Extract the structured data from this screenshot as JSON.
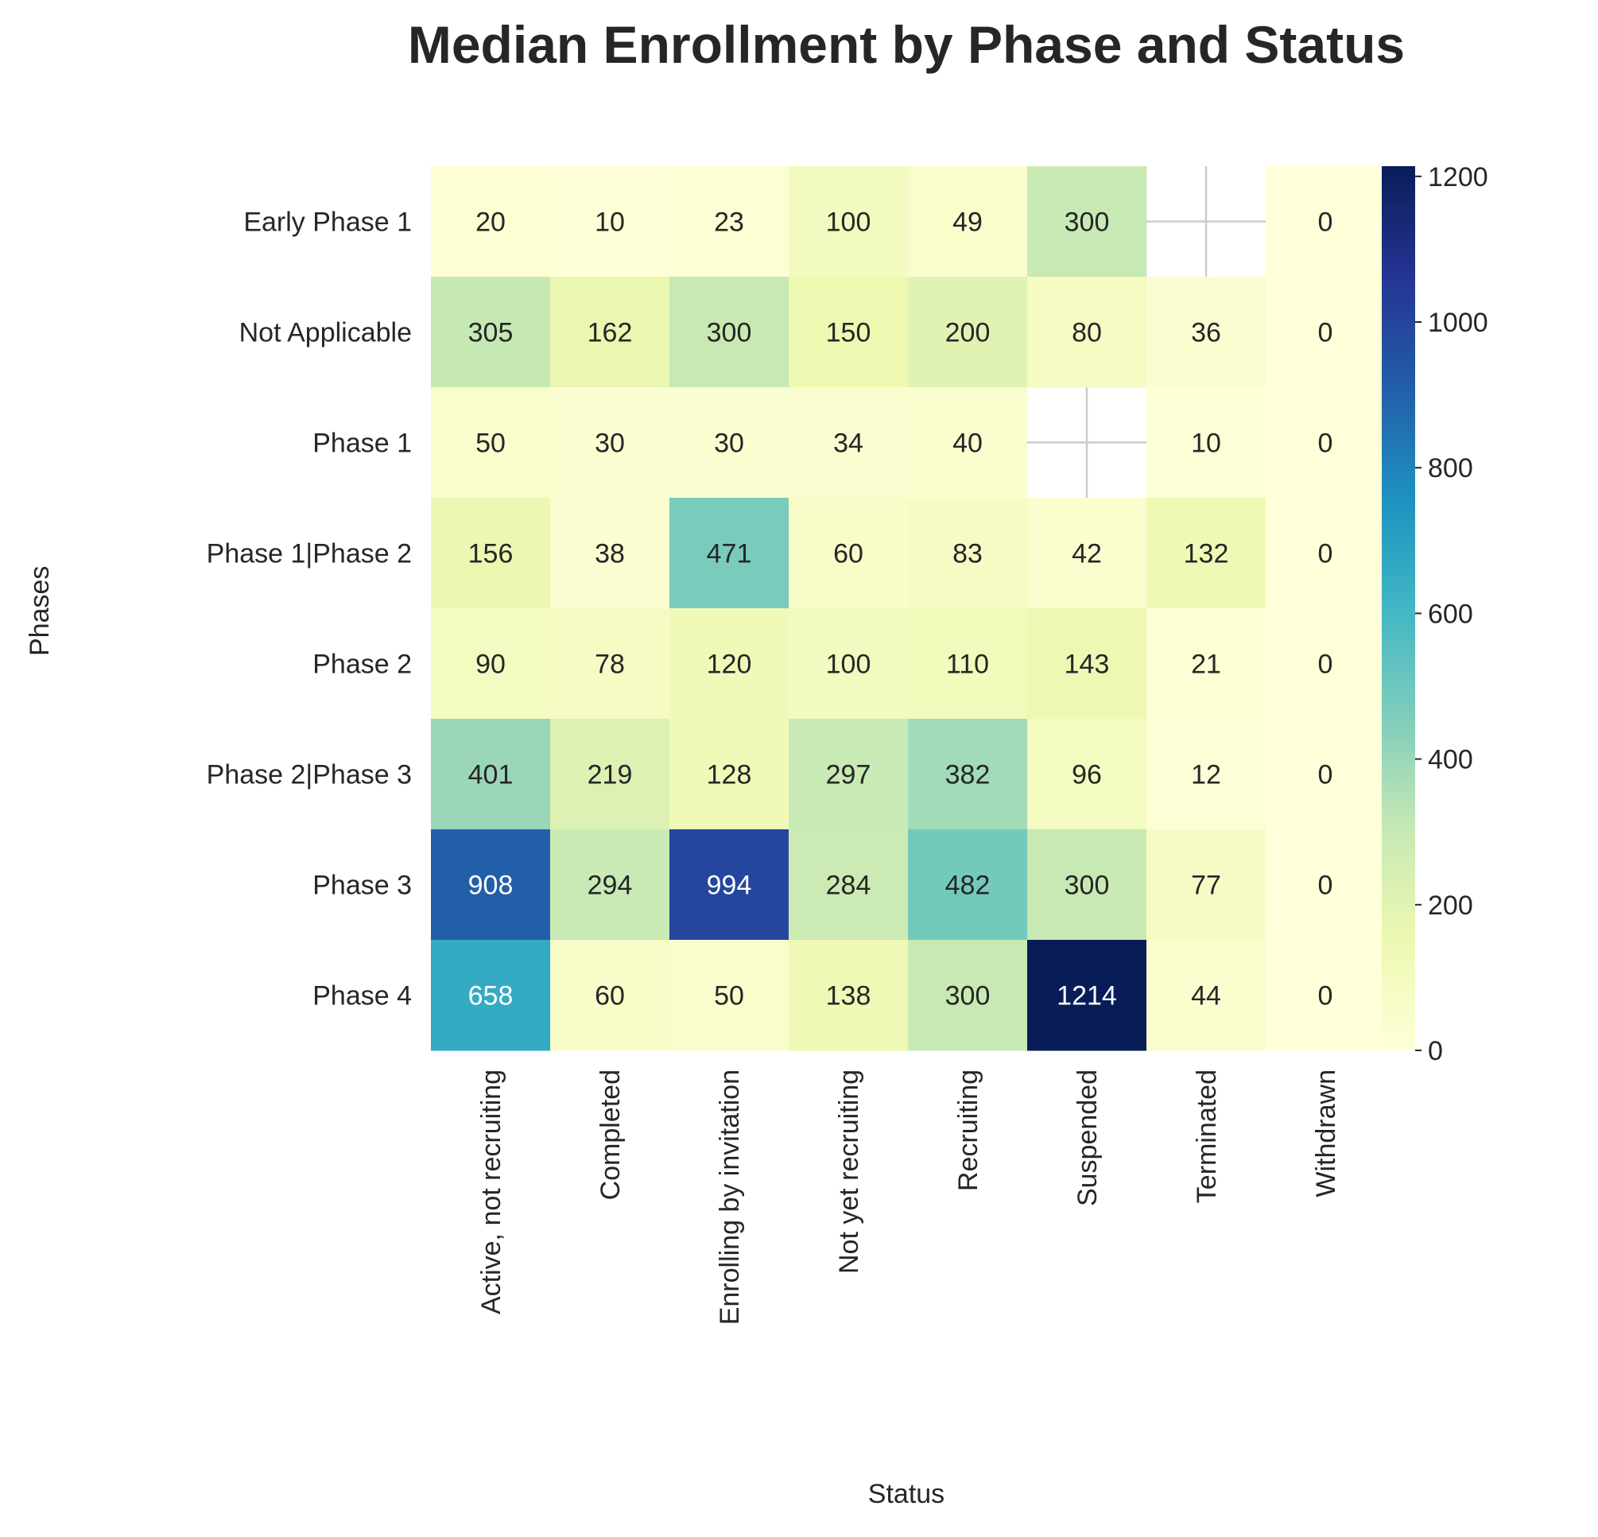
{
  "chart_data": {
    "type": "heatmap",
    "title": "Median Enrollment by Phase and Status",
    "xlabel": "Status",
    "ylabel": "Phases",
    "x_categories": [
      "Active, not recruiting",
      "Completed",
      "Enrolling by invitation",
      "Not yet recruiting",
      "Recruiting",
      "Suspended",
      "Terminated",
      "Withdrawn"
    ],
    "y_categories": [
      "Early Phase 1",
      "Not Applicable",
      "Phase 1",
      "Phase 1|Phase 2",
      "Phase 2",
      "Phase 2|Phase 3",
      "Phase 3",
      "Phase 4"
    ],
    "values": [
      [
        20,
        10,
        23,
        100,
        49,
        300,
        null,
        0
      ],
      [
        305,
        162,
        300,
        150,
        200,
        80,
        36,
        0
      ],
      [
        50,
        30,
        30,
        34,
        40,
        null,
        10,
        0
      ],
      [
        156,
        38,
        471,
        60,
        83,
        42,
        132,
        0
      ],
      [
        90,
        78,
        120,
        100,
        110,
        143,
        21,
        0
      ],
      [
        401,
        219,
        128,
        297,
        382,
        96,
        12,
        0
      ],
      [
        908,
        294,
        994,
        284,
        482,
        300,
        77,
        0
      ],
      [
        658,
        60,
        50,
        138,
        300,
        1214,
        44,
        0
      ]
    ],
    "colorbar": {
      "colormap": "YlGnBu",
      "range": [
        0,
        1214
      ],
      "ticks": [
        0,
        200,
        400,
        600,
        800,
        1000,
        1200
      ]
    },
    "missing_cells": "blank",
    "grid": false
  }
}
